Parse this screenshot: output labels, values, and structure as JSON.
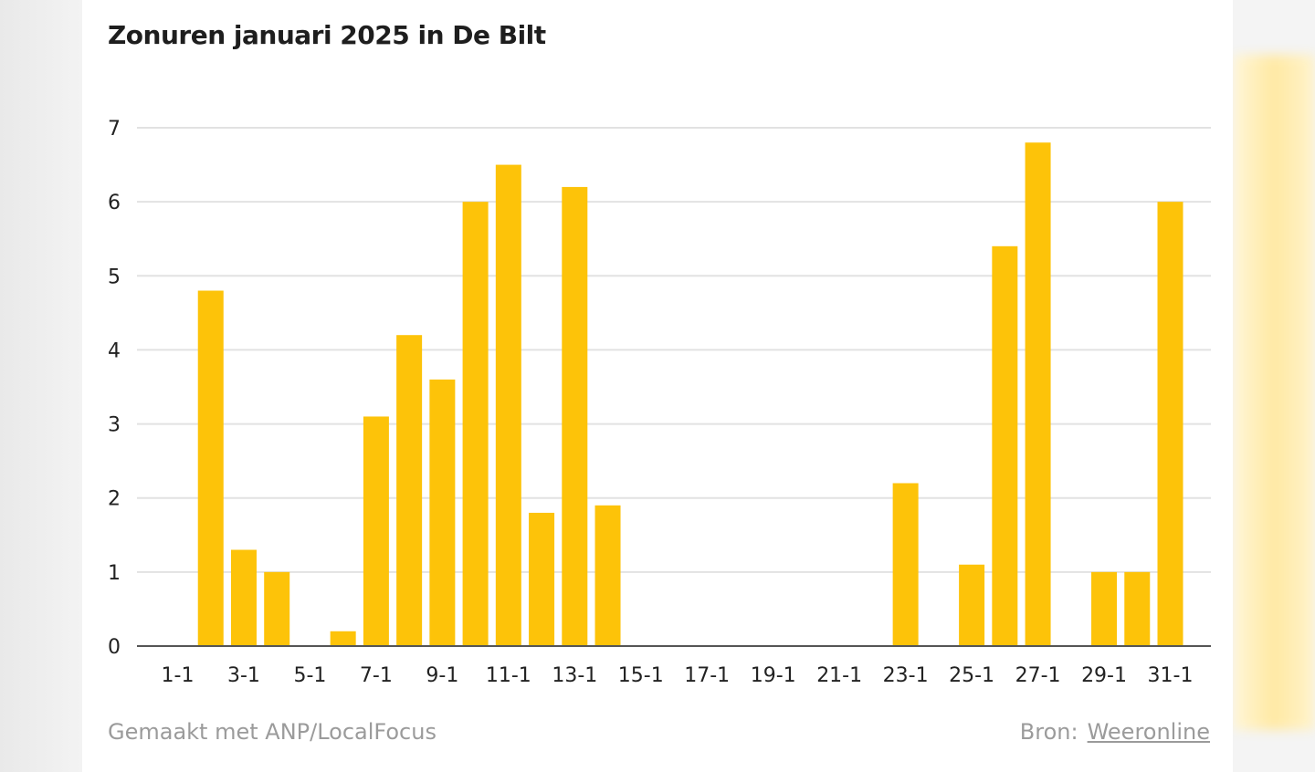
{
  "colors": {
    "bar": "#FDC309",
    "grid": "#e2e2e2",
    "axis": "#555555",
    "text": "#222222",
    "muted": "#9b9b9b"
  },
  "footer": {
    "made_with": "Gemaakt met ANP/LocalFocus",
    "source_label": "Bron:",
    "source_link": "Weeronline"
  },
  "chart_data": {
    "type": "bar",
    "title": "Zonuren januari 2025 in De Bilt",
    "xlabel": "",
    "ylabel": "",
    "ylim": [
      0,
      7
    ],
    "yticks": [
      "0",
      "1",
      "2",
      "3",
      "4",
      "5",
      "6",
      "7"
    ],
    "grid": true,
    "categories": [
      "1-1",
      "2-1",
      "3-1",
      "4-1",
      "5-1",
      "6-1",
      "7-1",
      "8-1",
      "9-1",
      "10-1",
      "11-1",
      "12-1",
      "13-1",
      "14-1",
      "15-1",
      "16-1",
      "17-1",
      "18-1",
      "19-1",
      "20-1",
      "21-1",
      "22-1",
      "23-1",
      "24-1",
      "25-1",
      "26-1",
      "27-1",
      "28-1",
      "29-1",
      "30-1",
      "31-1"
    ],
    "tick_labels": [
      "1-1",
      "3-1",
      "5-1",
      "7-1",
      "9-1",
      "11-1",
      "13-1",
      "15-1",
      "17-1",
      "19-1",
      "21-1",
      "23-1",
      "25-1",
      "27-1",
      "29-1",
      "31-1"
    ],
    "values": [
      0,
      4.8,
      1.3,
      1.0,
      0,
      0.2,
      3.1,
      4.2,
      3.6,
      6.0,
      6.5,
      1.8,
      6.2,
      1.9,
      0,
      0,
      0,
      0,
      0,
      0,
      0,
      0,
      2.2,
      0,
      1.1,
      5.4,
      6.8,
      0,
      1.0,
      1.0,
      6.0
    ]
  }
}
